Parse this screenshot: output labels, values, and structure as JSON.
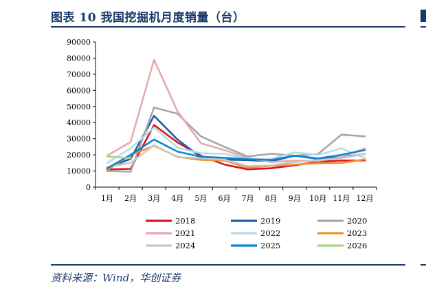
{
  "title": "图表 10   我国挖掘机月度销量（台）",
  "source": "资料来源：Wind，华创证券",
  "chart_data": {
    "type": "line",
    "title": "我国挖掘机月度销量（台）",
    "categories": [
      "1月",
      "2月",
      "3月",
      "4月",
      "5月",
      "6月",
      "7月",
      "8月",
      "9月",
      "10月",
      "11月",
      "12月"
    ],
    "ylim": [
      0,
      90000
    ],
    "yticks": [
      0,
      10000,
      20000,
      30000,
      40000,
      50000,
      60000,
      70000,
      80000,
      90000
    ],
    "ytick_labels": [
      "0",
      "10000",
      "20000",
      "30000",
      "40000",
      "50000",
      "60000",
      "70000",
      "80000",
      "90000"
    ],
    "grid": false,
    "legend_position": "bottom",
    "series": [
      {
        "name": "2018",
        "color": "#d7191c",
        "values": [
          11000,
          11300,
          38500,
          27700,
          19500,
          14000,
          11000,
          11700,
          13500,
          15700,
          16500,
          16500
        ]
      },
      {
        "name": "2019",
        "color": "#1f5fa8",
        "values": [
          12000,
          17500,
          44200,
          29500,
          18500,
          17000,
          16700,
          16000,
          19500,
          17500,
          18500,
          20500
        ]
      },
      {
        "name": "2020",
        "color": "#a6a6a6",
        "values": [
          10000,
          9600,
          49400,
          45500,
          31500,
          25000,
          19000,
          20700,
          19500,
          20500,
          32500,
          31500
        ]
      },
      {
        "name": "2021",
        "color": "#e8a9ad",
        "values": [
          19500,
          28000,
          79000,
          47000,
          27200,
          23000,
          18000,
          15500,
          16500,
          16200,
          18500,
          24000
        ]
      },
      {
        "name": "2022",
        "color": "#b6dbe8",
        "values": [
          15000,
          24000,
          37000,
          24500,
          21000,
          20700,
          17500,
          17500,
          21500,
          20000,
          24000,
          18000
        ]
      },
      {
        "name": "2023",
        "color": "#f28e2b",
        "values": [
          10500,
          20000,
          25600,
          18800,
          16900,
          16500,
          12000,
          13200,
          14000,
          14800,
          15000,
          17200
        ]
      },
      {
        "name": "2024",
        "color": "#c8c8c8",
        "values": [
          12500,
          15000,
          26000,
          18500,
          18000,
          17000,
          13000,
          13500,
          15500,
          16800,
          18000,
          20500
        ]
      },
      {
        "name": "2025",
        "color": "#0b84d8",
        "values": [
          11700,
          20000,
          29500,
          22000,
          18800,
          18200,
          17300,
          16800,
          19500,
          17800,
          20000,
          23000
        ]
      },
      {
        "name": "2026",
        "color": "#a9d18e",
        "values": [
          19000,
          18000,
          null,
          null,
          null,
          null,
          null,
          null,
          null,
          null,
          null,
          null
        ]
      }
    ]
  }
}
